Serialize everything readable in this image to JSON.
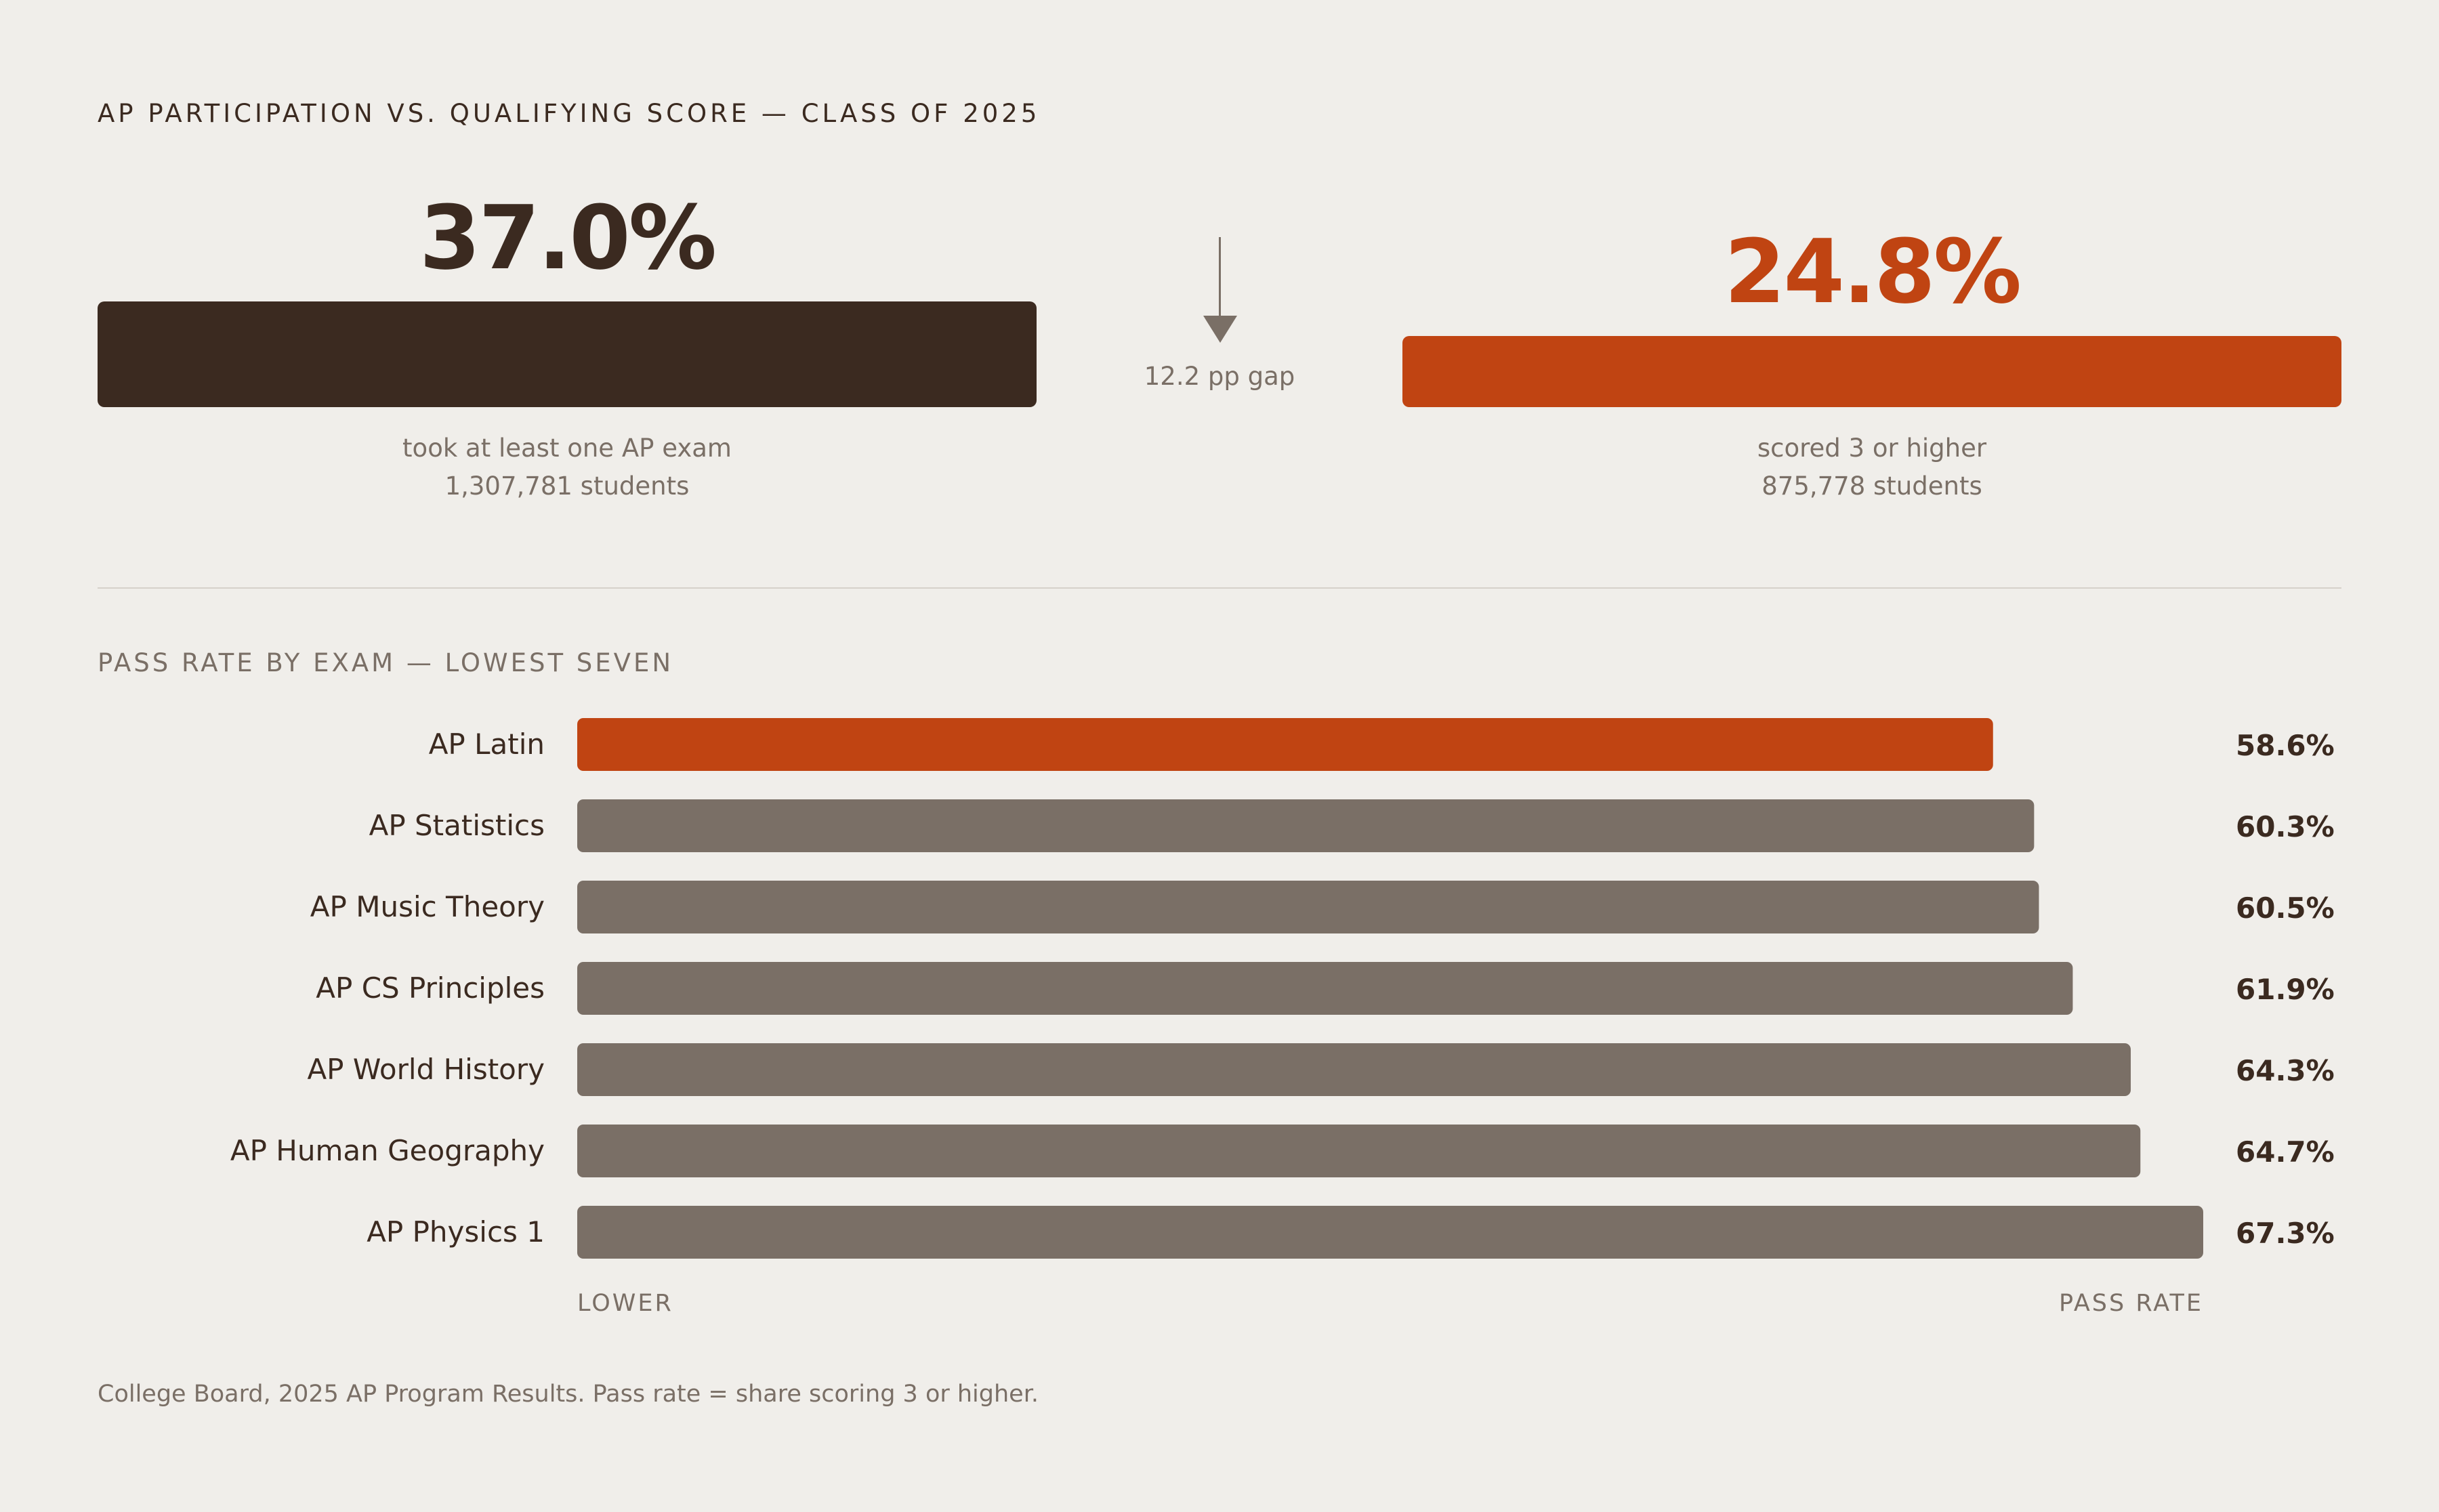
{
  "headline": "AP PARTICIPATION VS. QUALIFYING SCORE — CLASS OF 2025",
  "summary": {
    "participation": {
      "value_label": "37.0%",
      "value": 37.0,
      "caption": "took at least one AP exam",
      "count": "1,307,781 students",
      "color": "#3b2a20"
    },
    "qualifying": {
      "value_label": "24.8%",
      "value": 24.8,
      "caption": "scored 3 or higher",
      "count": "875,778 students",
      "color": "#c04412"
    },
    "gap_label": "12.2 pp gap"
  },
  "section_title": "PASS RATE BY EXAM — LOWEST SEVEN",
  "chart_data": {
    "type": "bar",
    "orientation": "horizontal",
    "categories": [
      "AP Latin",
      "AP Statistics",
      "AP Music Theory",
      "AP CS Principles",
      "AP World History",
      "AP Human Geography",
      "AP Physics 1"
    ],
    "values": [
      58.6,
      60.3,
      60.5,
      61.9,
      64.3,
      64.7,
      67.3
    ],
    "value_labels": [
      "58.6%",
      "60.3%",
      "60.5%",
      "61.9%",
      "64.3%",
      "64.7%",
      "67.3%"
    ],
    "highlight_index": 0,
    "highlight_color": "#c04412",
    "bar_color": "#7a6f66",
    "axis_left_label": "LOWER",
    "axis_right_label": "PASS RATE",
    "xlim": [
      0,
      67.3
    ]
  },
  "footnote": "College Board, 2025 AP Program Results. Pass rate = share scoring 3 or higher."
}
